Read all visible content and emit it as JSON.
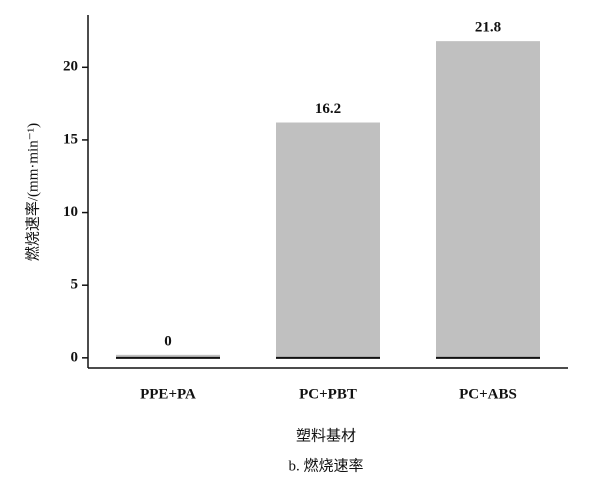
{
  "chart_data": {
    "type": "bar",
    "categories": [
      "PPE+PA",
      "PC+PBT",
      "PC+ABS"
    ],
    "values": [
      0,
      16.2,
      21.8
    ],
    "color": "#c0c0c0",
    "ylim": [
      -0.7,
      23.6
    ],
    "yticks": [
      0,
      5,
      10,
      15,
      20
    ],
    "y_label": "燃烧速率/(mm·min⁻¹)",
    "x_label": "塑料基材",
    "caption": "b. 燃烧速率"
  }
}
